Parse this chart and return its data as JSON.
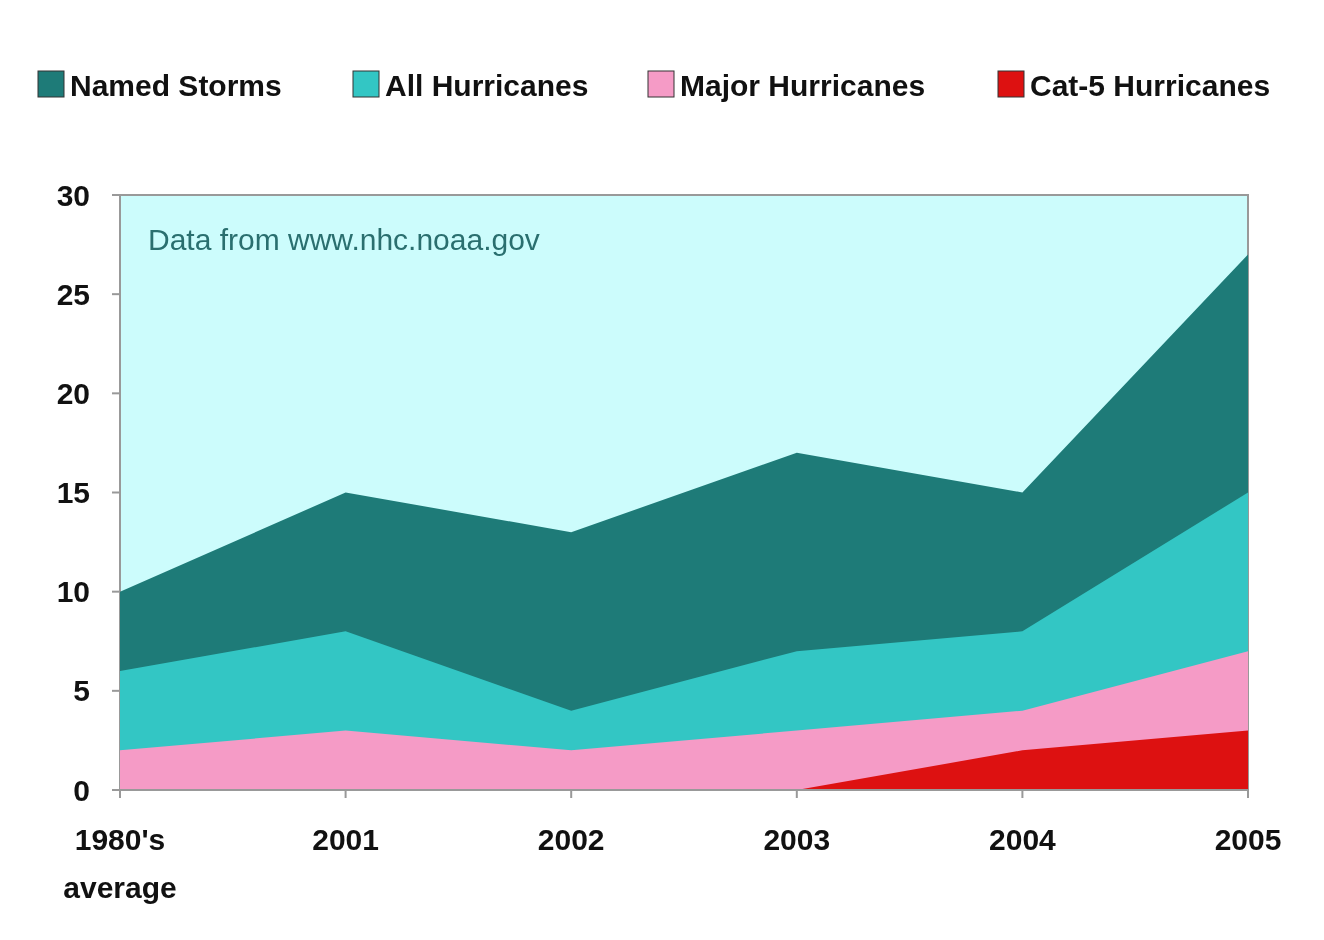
{
  "chart_data": {
    "type": "area",
    "categories": [
      "1980's average",
      "2001",
      "2002",
      "2003",
      "2004",
      "2005"
    ],
    "series": [
      {
        "name": "Named Storms",
        "color": "#1e7b78",
        "values": [
          10,
          15,
          13,
          17,
          15,
          27
        ]
      },
      {
        "name": "All Hurricanes",
        "color": "#33c6c4",
        "values": [
          6,
          8,
          4,
          7,
          8,
          15
        ]
      },
      {
        "name": "Major Hurricanes",
        "color": "#f59bc6",
        "values": [
          2,
          3,
          2,
          3,
          4,
          7
        ]
      },
      {
        "name": "Cat-5 Hurricanes",
        "color": "#dd1111",
        "values": [
          null,
          null,
          null,
          0,
          2,
          3
        ]
      }
    ],
    "ylim": [
      0,
      30
    ],
    "yticks": [
      0,
      5,
      10,
      15,
      20,
      25,
      30
    ],
    "grid": false,
    "legend": "top",
    "annotations": [
      "Data from www.nhc.noaa.gov"
    ]
  }
}
